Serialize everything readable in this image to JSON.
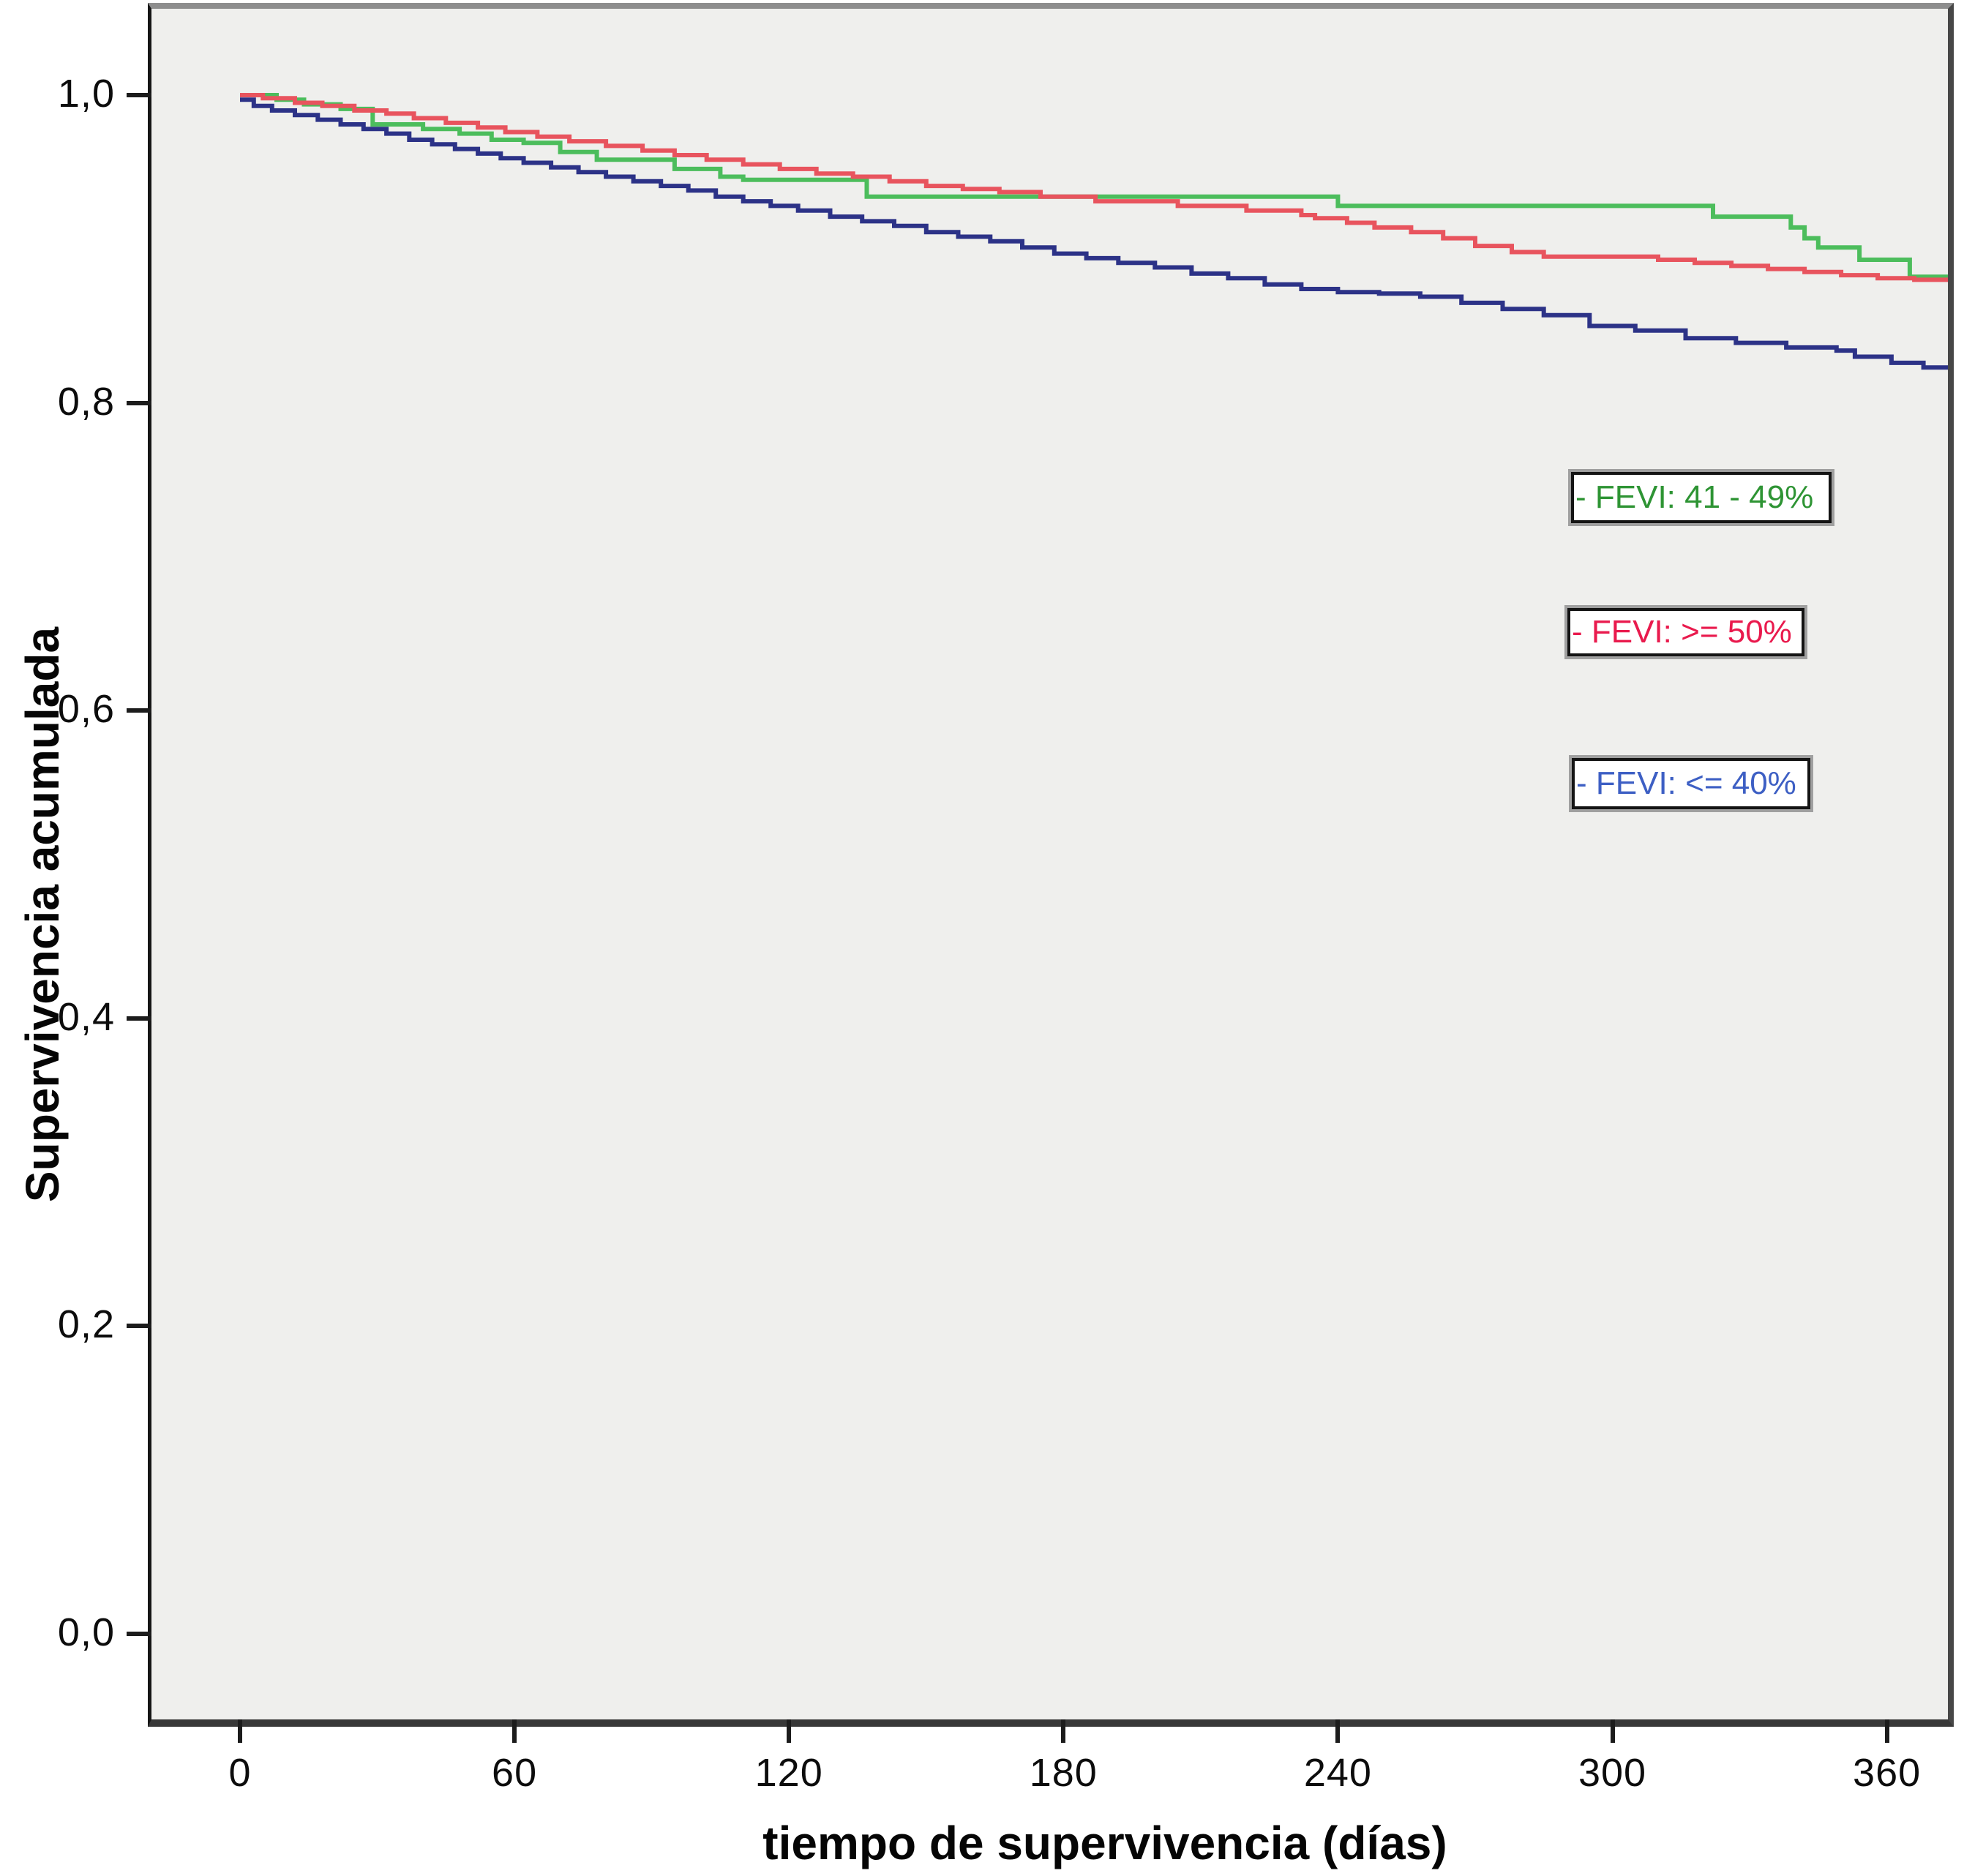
{
  "figure": {
    "background": "#ffffff",
    "plot_background": "#efefed"
  },
  "axes": {
    "x_title": "tiempo de supervivencia (días)",
    "y_title": "Supervivencia acumulada"
  },
  "legend": {
    "items": [
      {
        "id": "fevi-41-49",
        "label": "- FEVI: 41 - 49%",
        "text_color": "#2e9434",
        "line_color": "#4cbd5c"
      },
      {
        "id": "fevi-ge-50",
        "label": "- FEVI: >= 50%",
        "text_color": "#e91a4d",
        "line_color": "#e8545e"
      },
      {
        "id": "fevi-le-40",
        "label": "- FEVI: <= 40%",
        "text_color": "#3d5fc4",
        "line_color": "#2c3287"
      }
    ]
  },
  "chart_data": {
    "type": "line",
    "subtype": "kaplan-meier-step",
    "title": "",
    "xlabel": "tiempo de supervivencia (días)",
    "ylabel": "Supervivencia acumulada",
    "grid": false,
    "legend_position": "inside-right",
    "xlim": [
      -19.4,
      374.3
    ],
    "ylim": [
      -0.056,
      1.056
    ],
    "x_ticks": {
      "values": [
        0,
        60,
        120,
        180,
        240,
        300,
        360
      ],
      "labels": [
        "0",
        "60",
        "120",
        "180",
        "240",
        "300",
        "360"
      ]
    },
    "y_ticks": {
      "values": [
        1.0,
        0.8,
        0.6,
        0.4,
        0.2,
        0.0
      ],
      "labels": [
        "1,0",
        "0,8",
        "0,6",
        "0,4",
        "0,2",
        "0,0"
      ]
    },
    "series": [
      {
        "name": "FEVI: 41 - 49%",
        "color": "#4cbd5c",
        "points": [
          [
            0,
            1.0
          ],
          [
            8,
            0.997
          ],
          [
            14,
            0.994
          ],
          [
            22,
            0.991
          ],
          [
            29,
            0.981
          ],
          [
            40,
            0.978
          ],
          [
            48,
            0.975
          ],
          [
            55,
            0.971
          ],
          [
            62,
            0.969
          ],
          [
            70,
            0.963
          ],
          [
            78,
            0.958
          ],
          [
            95,
            0.952
          ],
          [
            105,
            0.947
          ],
          [
            110,
            0.945
          ],
          [
            137,
            0.934
          ],
          [
            240,
            0.928
          ],
          [
            322,
            0.921
          ],
          [
            339,
            0.914
          ],
          [
            342,
            0.907
          ],
          [
            345,
            0.901
          ],
          [
            354,
            0.893
          ],
          [
            365,
            0.882
          ],
          [
            374,
            0.881
          ]
        ]
      },
      {
        "name": "FEVI: >= 50%",
        "color": "#e8545e",
        "points": [
          [
            0,
            1.0
          ],
          [
            5,
            0.998
          ],
          [
            12,
            0.995
          ],
          [
            18,
            0.993
          ],
          [
            25,
            0.99
          ],
          [
            32,
            0.988
          ],
          [
            38,
            0.985
          ],
          [
            45,
            0.982
          ],
          [
            52,
            0.979
          ],
          [
            58,
            0.976
          ],
          [
            65,
            0.973
          ],
          [
            72,
            0.97
          ],
          [
            80,
            0.967
          ],
          [
            88,
            0.964
          ],
          [
            95,
            0.961
          ],
          [
            102,
            0.958
          ],
          [
            110,
            0.955
          ],
          [
            118,
            0.952
          ],
          [
            126,
            0.949
          ],
          [
            134,
            0.947
          ],
          [
            142,
            0.944
          ],
          [
            150,
            0.941
          ],
          [
            158,
            0.939
          ],
          [
            166,
            0.937
          ],
          [
            175,
            0.934
          ],
          [
            187,
            0.931
          ],
          [
            205,
            0.928
          ],
          [
            220,
            0.925
          ],
          [
            232,
            0.922
          ],
          [
            235,
            0.92
          ],
          [
            242,
            0.917
          ],
          [
            248,
            0.914
          ],
          [
            256,
            0.911
          ],
          [
            263,
            0.907
          ],
          [
            270,
            0.902
          ],
          [
            278,
            0.898
          ],
          [
            285,
            0.895
          ],
          [
            310,
            0.893
          ],
          [
            318,
            0.891
          ],
          [
            326,
            0.889
          ],
          [
            334,
            0.887
          ],
          [
            342,
            0.885
          ],
          [
            350,
            0.883
          ],
          [
            358,
            0.881
          ],
          [
            366,
            0.88
          ],
          [
            374,
            0.878
          ]
        ]
      },
      {
        "name": "FEVI: <= 40%",
        "color": "#2c3287",
        "points": [
          [
            0,
            0.997
          ],
          [
            3,
            0.993
          ],
          [
            7,
            0.99
          ],
          [
            12,
            0.987
          ],
          [
            17,
            0.984
          ],
          [
            22,
            0.981
          ],
          [
            27,
            0.978
          ],
          [
            32,
            0.975
          ],
          [
            37,
            0.971
          ],
          [
            42,
            0.968
          ],
          [
            47,
            0.965
          ],
          [
            52,
            0.962
          ],
          [
            57,
            0.959
          ],
          [
            62,
            0.956
          ],
          [
            68,
            0.953
          ],
          [
            74,
            0.95
          ],
          [
            80,
            0.947
          ],
          [
            86,
            0.944
          ],
          [
            92,
            0.941
          ],
          [
            98,
            0.938
          ],
          [
            104,
            0.934
          ],
          [
            110,
            0.931
          ],
          [
            116,
            0.928
          ],
          [
            122,
            0.925
          ],
          [
            129,
            0.921
          ],
          [
            136,
            0.918
          ],
          [
            143,
            0.915
          ],
          [
            150,
            0.911
          ],
          [
            157,
            0.908
          ],
          [
            164,
            0.905
          ],
          [
            171,
            0.901
          ],
          [
            178,
            0.897
          ],
          [
            185,
            0.894
          ],
          [
            192,
            0.891
          ],
          [
            200,
            0.888
          ],
          [
            208,
            0.884
          ],
          [
            216,
            0.881
          ],
          [
            224,
            0.877
          ],
          [
            232,
            0.874
          ],
          [
            240,
            0.872
          ],
          [
            249,
            0.871
          ],
          [
            258,
            0.869
          ],
          [
            267,
            0.865
          ],
          [
            276,
            0.861
          ],
          [
            285,
            0.857
          ],
          [
            295,
            0.85
          ],
          [
            305,
            0.847
          ],
          [
            316,
            0.842
          ],
          [
            327,
            0.839
          ],
          [
            338,
            0.836
          ],
          [
            349,
            0.834
          ],
          [
            353,
            0.83
          ],
          [
            361,
            0.826
          ],
          [
            368,
            0.823
          ],
          [
            374,
            0.822
          ]
        ]
      }
    ]
  }
}
